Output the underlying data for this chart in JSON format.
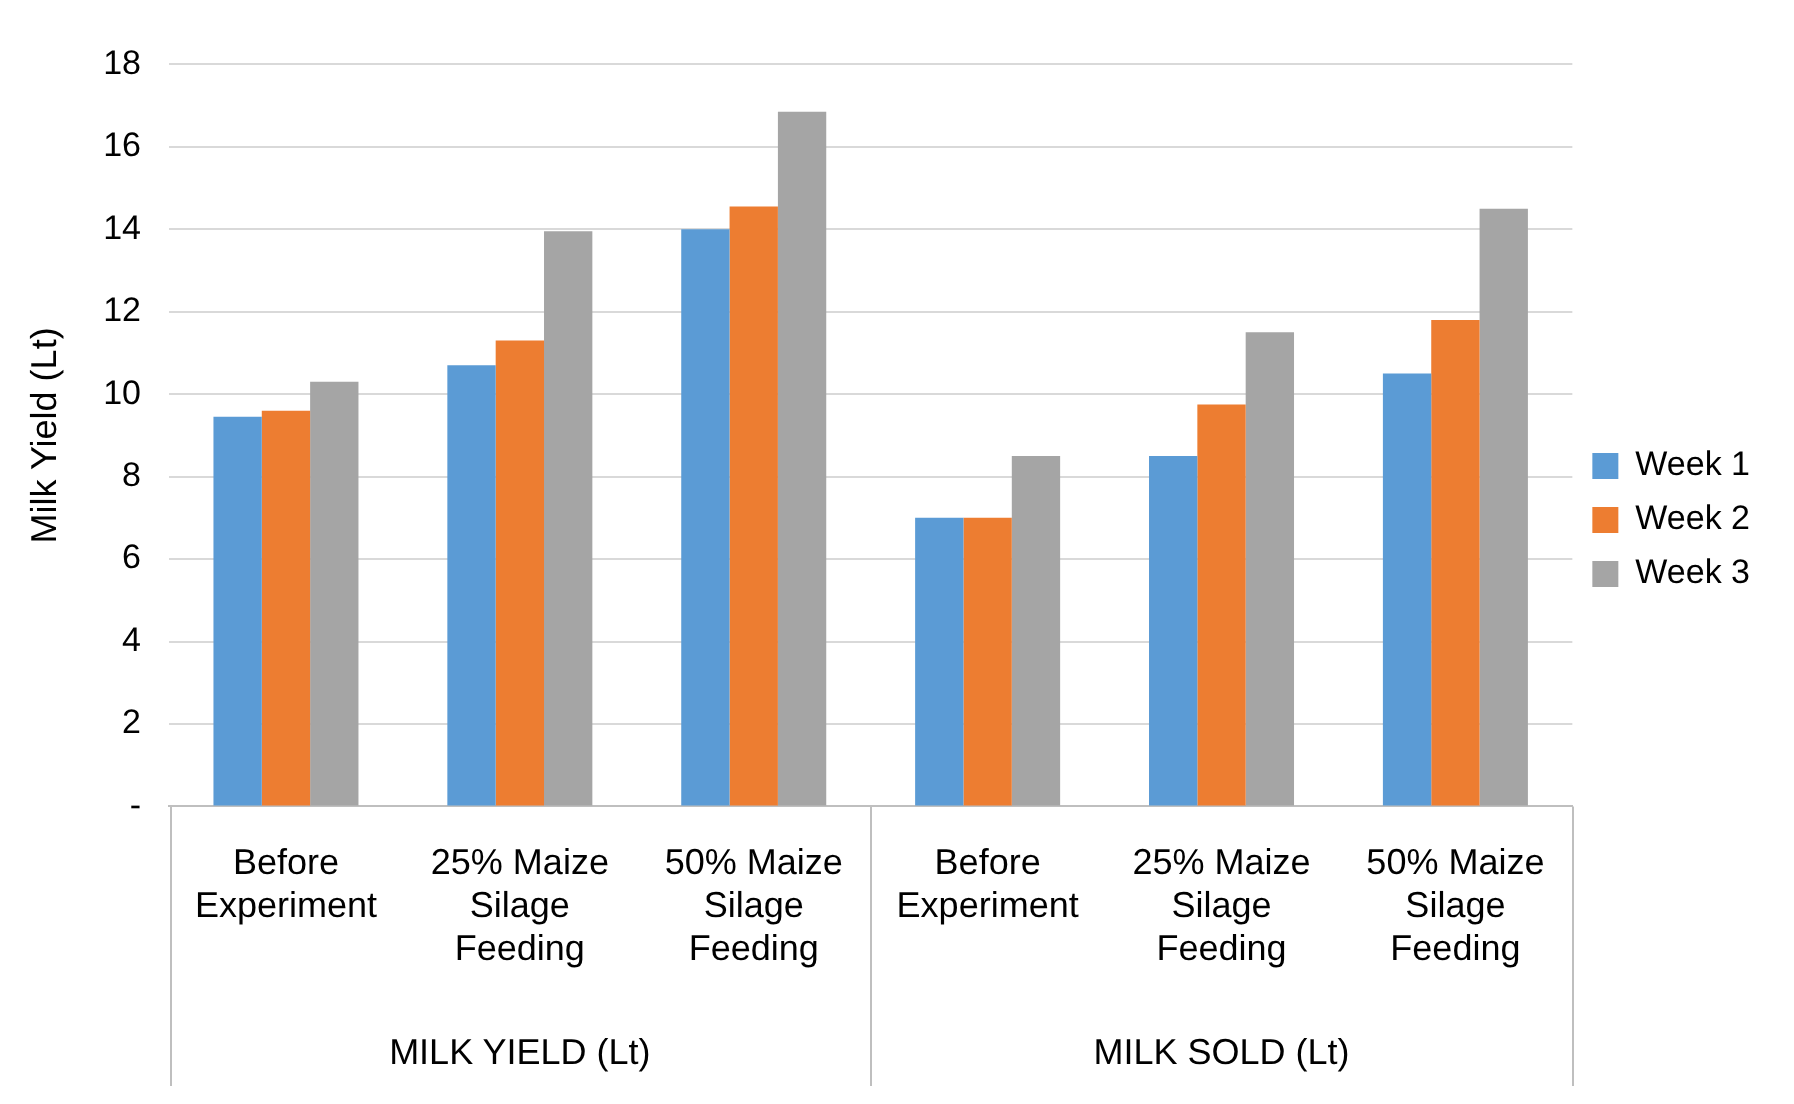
{
  "chart_data": {
    "type": "bar",
    "ylabel": "Milk Yield (Lt)",
    "categories": [
      "Before Experiment",
      "25% Maize Silage Feeding",
      "50% Maize Silage Feeding",
      "Before Experiment",
      "25% Maize Silage Feeding",
      "50% Maize Silage Feeding"
    ],
    "series": [
      {
        "name": "Week 1",
        "color": "#5b9bd5",
        "values": [
          9.45,
          10.7,
          14,
          7,
          8.5,
          10.5
        ]
      },
      {
        "name": "Week 2",
        "color": "#ed7d31",
        "values": [
          9.6,
          11.3,
          14.55,
          7,
          9.75,
          11.8
        ]
      },
      {
        "name": "Week 3",
        "color": "#a5a5a5",
        "values": [
          10.3,
          13.95,
          16.85,
          8.5,
          11.5,
          14.5
        ]
      }
    ],
    "ylim": [
      0,
      18
    ],
    "yticks": [
      {
        "value": 0,
        "label": "-"
      },
      2,
      4,
      6,
      8,
      10,
      12,
      14,
      16,
      18
    ],
    "grid": "y",
    "legend": "right",
    "annotations": [
      "MILK YIELD (Lt)",
      "MILK SOLD (Lt)"
    ]
  }
}
